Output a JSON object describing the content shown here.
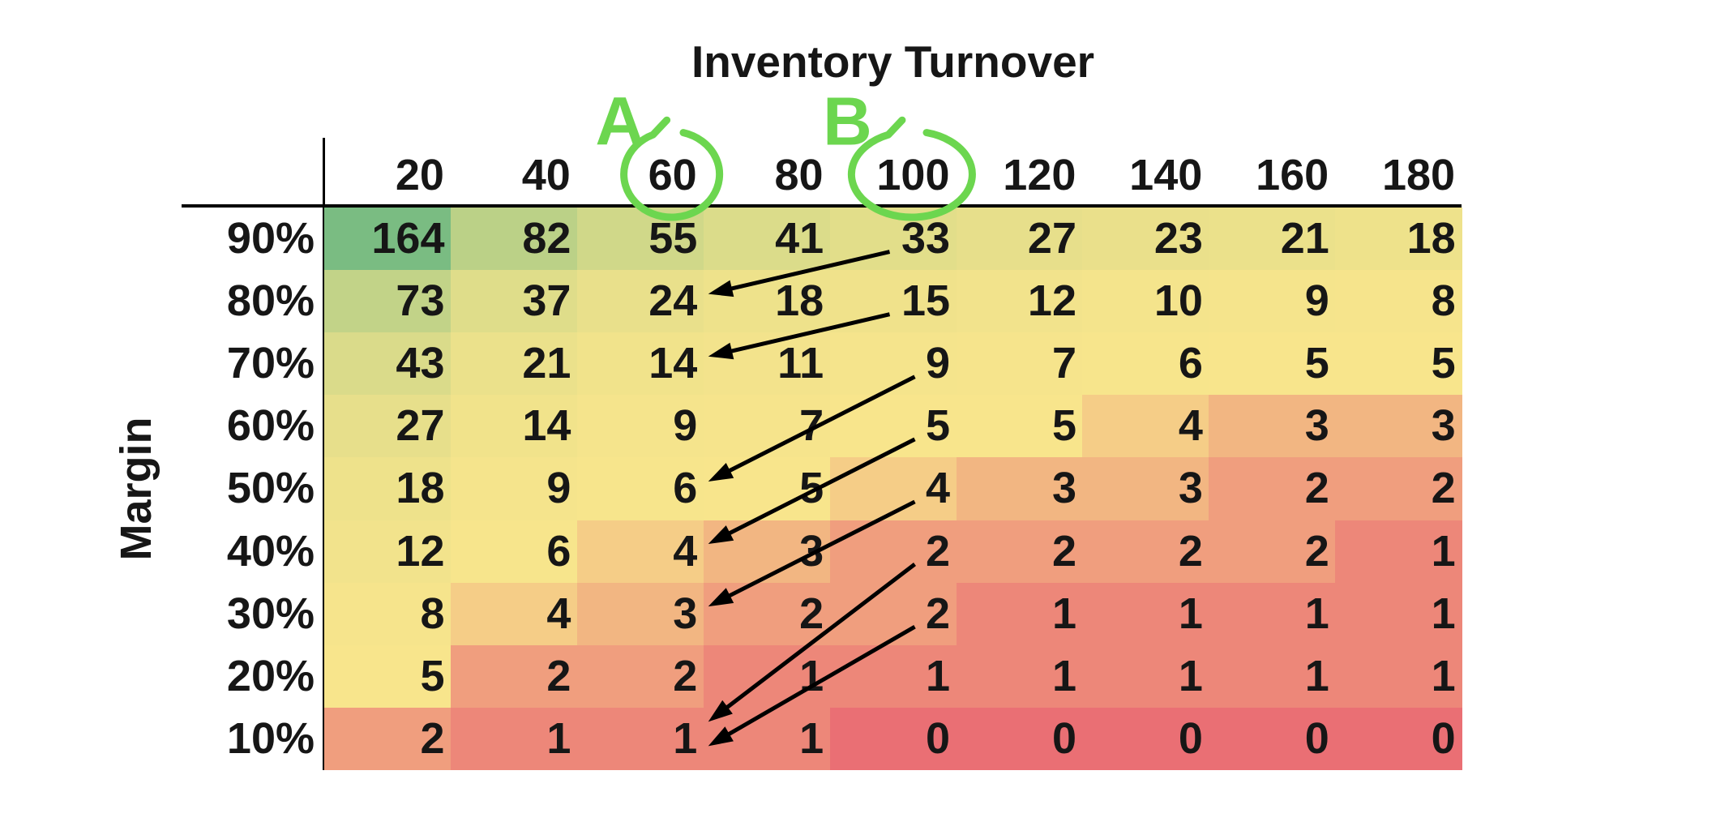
{
  "title": "Inventory Turnover",
  "y_axis_label": "Margin",
  "chart_data": {
    "type": "heatmap",
    "x_axis_title": "Inventory Turnover",
    "y_axis_title": "Margin",
    "columns": [
      "20",
      "40",
      "60",
      "80",
      "100",
      "120",
      "140",
      "160",
      "180"
    ],
    "rows": [
      "90%",
      "80%",
      "70%",
      "60%",
      "50%",
      "40%",
      "30%",
      "20%",
      "10%"
    ],
    "values": [
      [
        164,
        82,
        55,
        41,
        33,
        27,
        23,
        21,
        18
      ],
      [
        73,
        37,
        24,
        18,
        15,
        12,
        10,
        9,
        8
      ],
      [
        43,
        21,
        14,
        11,
        9,
        7,
        6,
        5,
        5
      ],
      [
        27,
        14,
        9,
        7,
        5,
        5,
        4,
        3,
        3
      ],
      [
        18,
        9,
        6,
        5,
        4,
        3,
        3,
        2,
        2
      ],
      [
        12,
        6,
        4,
        3,
        2,
        2,
        2,
        2,
        1
      ],
      [
        8,
        4,
        3,
        2,
        2,
        1,
        1,
        1,
        1
      ],
      [
        5,
        2,
        2,
        1,
        1,
        1,
        1,
        1,
        1
      ],
      [
        2,
        1,
        1,
        1,
        0,
        0,
        0,
        0,
        0
      ]
    ],
    "colormap": {
      "type": "3-color-scale",
      "min_value": 0,
      "min_color": "#EA6F74",
      "mid_value": 5,
      "mid_color": "#F8E58C",
      "max_value": 164,
      "max_color": "#7ABC82"
    },
    "grid": false,
    "legend": "none"
  },
  "annotations": {
    "color": "#6CD64F",
    "arrow_color": "#000000",
    "labels": [
      {
        "text": "A",
        "column": "60"
      },
      {
        "text": "B",
        "column": "100"
      }
    ],
    "circled_columns": [
      "60",
      "100"
    ],
    "arrows": [
      {
        "from": {
          "row": "90%",
          "col": "100"
        },
        "to": {
          "row": "80%",
          "col": "60"
        }
      },
      {
        "from": {
          "row": "80%",
          "col": "100"
        },
        "to": {
          "row": "70%",
          "col": "60"
        }
      },
      {
        "from": {
          "row": "70%",
          "col": "100"
        },
        "to": {
          "row": "50%",
          "col": "60"
        }
      },
      {
        "from": {
          "row": "60%",
          "col": "100"
        },
        "to": {
          "row": "40%",
          "col": "60"
        }
      },
      {
        "from": {
          "row": "50%",
          "col": "100"
        },
        "to": {
          "row": "30%",
          "col": "60"
        }
      },
      {
        "from": {
          "row": "40%",
          "col": "100"
        },
        "to": {
          "row": "10%",
          "col": "60"
        }
      },
      {
        "from": {
          "row": "30%",
          "col": "100"
        },
        "to": {
          "row": "10%",
          "col": "60"
        }
      }
    ]
  }
}
